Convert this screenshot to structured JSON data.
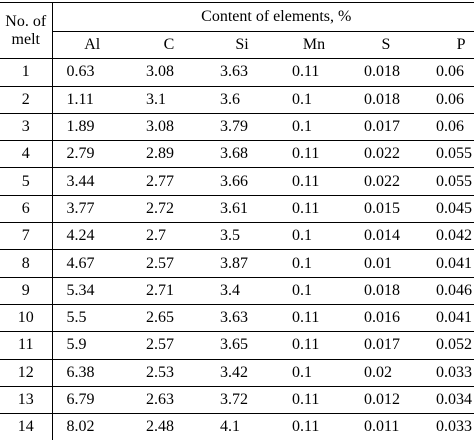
{
  "table": {
    "header": {
      "melt": [
        "No. of",
        "melt"
      ],
      "content": "Content of elements, %",
      "columns": [
        "Al",
        "C",
        "Si",
        "Mn",
        "S",
        "P"
      ]
    },
    "rows": [
      [
        "1",
        "0.63",
        "3.08",
        "3.63",
        "0.11",
        "0.018",
        "0.06"
      ],
      [
        "2",
        "1.11",
        "3.1",
        "3.6",
        "0.1",
        "0.018",
        "0.06"
      ],
      [
        "3",
        "1.89",
        "3.08",
        "3.79",
        "0.1",
        "0.017",
        "0.06"
      ],
      [
        "4",
        "2.79",
        "2.89",
        "3.68",
        "0.11",
        "0.022",
        "0.055"
      ],
      [
        "5",
        "3.44",
        "2.77",
        "3.66",
        "0.11",
        "0.022",
        "0.055"
      ],
      [
        "6",
        "3.77",
        "2.72",
        "3.61",
        "0.11",
        "0.015",
        "0.045"
      ],
      [
        "7",
        "4.24",
        "2.7",
        "3.5",
        "0.1",
        "0.014",
        "0.042"
      ],
      [
        "8",
        "4.67",
        "2.57",
        "3.87",
        "0.1",
        "0.01",
        "0.041"
      ],
      [
        "9",
        "5.34",
        "2.71",
        "3.4",
        "0.1",
        "0.018",
        "0.046"
      ],
      [
        "10",
        "5.5",
        "2.65",
        "3.63",
        "0.11",
        "0.016",
        "0.041"
      ],
      [
        "11",
        "5.9",
        "2.57",
        "3.65",
        "0.11",
        "0.017",
        "0.052"
      ],
      [
        "12",
        "6.38",
        "2.53",
        "3.42",
        "0.1",
        "0.02",
        "0.033"
      ],
      [
        "13",
        "6.79",
        "2.63",
        "3.72",
        "0.11",
        "0.012",
        "0.034"
      ],
      [
        "14",
        "8.02",
        "2.48",
        "4.1",
        "0.11",
        "0.011",
        "0.033"
      ]
    ]
  }
}
